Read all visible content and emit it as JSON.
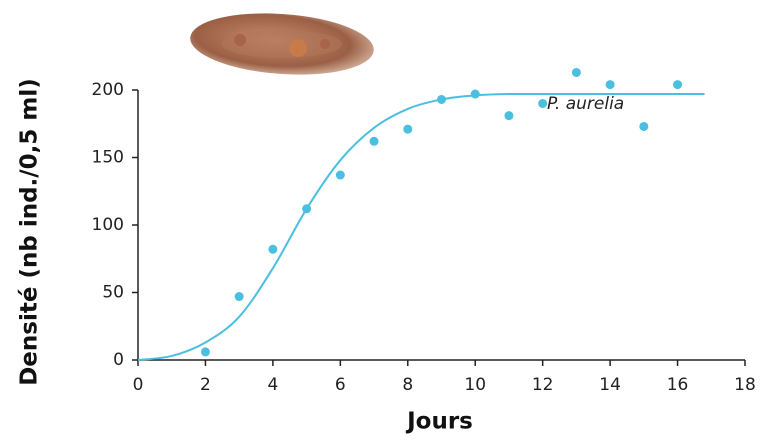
{
  "chart_data": {
    "type": "scatter",
    "xlabel": "Jours",
    "ylabel": "Densité (nb ind./0,5 ml)",
    "annotation": "P. aurelia",
    "xlim": [
      0,
      18
    ],
    "ylim": [
      0,
      200
    ],
    "xticks": [
      0,
      2,
      4,
      6,
      8,
      10,
      12,
      14,
      16,
      18
    ],
    "yticks": [
      0,
      50,
      100,
      150,
      200
    ],
    "grid": false,
    "series": [
      {
        "type": "scatter",
        "color": "#4bbfe0",
        "x": [
          2,
          3,
          4,
          5,
          6,
          7,
          8,
          9,
          10,
          11,
          12,
          13,
          14,
          15,
          16
        ],
        "values": [
          6,
          47,
          82,
          112,
          137,
          162,
          171,
          193,
          197,
          181,
          190,
          213,
          204,
          173,
          204
        ]
      },
      {
        "type": "line",
        "color": "#4bbfe0",
        "x": [
          0,
          1,
          2,
          3,
          4,
          5,
          6,
          7,
          8,
          9,
          10,
          11,
          12,
          13,
          14,
          15,
          16,
          16.8
        ],
        "values": [
          0,
          3,
          13,
          32,
          68,
          112,
          148,
          172,
          186,
          193,
          196,
          197,
          197,
          197,
          197,
          197,
          197,
          197
        ]
      }
    ]
  }
}
